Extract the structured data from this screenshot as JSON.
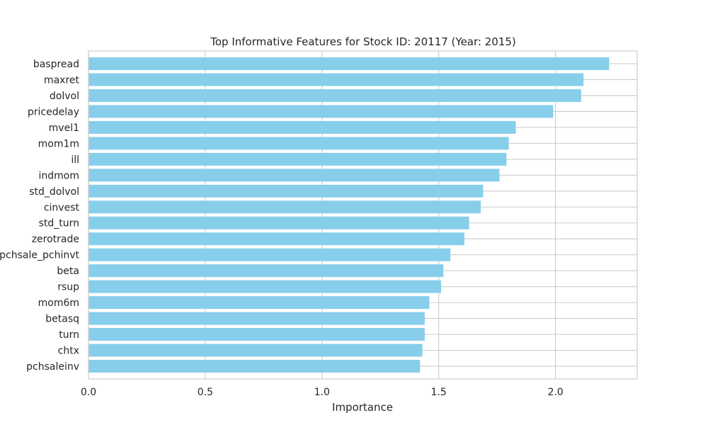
{
  "chart_data": {
    "type": "bar",
    "orientation": "horizontal",
    "title": "Top Informative Features for Stock ID: 20117 (Year: 2015)",
    "xlabel": "Importance",
    "ylabel": "",
    "xlim": [
      0,
      2.35
    ],
    "xticks": [
      "0.0",
      "0.5",
      "1.0",
      "1.5",
      "2.0"
    ],
    "grid": true,
    "bar_color": "#87CEEB",
    "categories": [
      "baspread",
      "maxret",
      "dolvol",
      "pricedelay",
      "mvel1",
      "mom1m",
      "ill",
      "indmom",
      "std_dolvol",
      "cinvest",
      "std_turn",
      "zerotrade",
      "pchsale_pchinvt",
      "beta",
      "rsup",
      "mom6m",
      "betasq",
      "turn",
      "chtx",
      "pchsaleinv"
    ],
    "values": [
      2.23,
      2.12,
      2.11,
      1.99,
      1.83,
      1.8,
      1.79,
      1.76,
      1.69,
      1.68,
      1.63,
      1.61,
      1.55,
      1.52,
      1.51,
      1.46,
      1.44,
      1.44,
      1.43,
      1.42
    ]
  }
}
